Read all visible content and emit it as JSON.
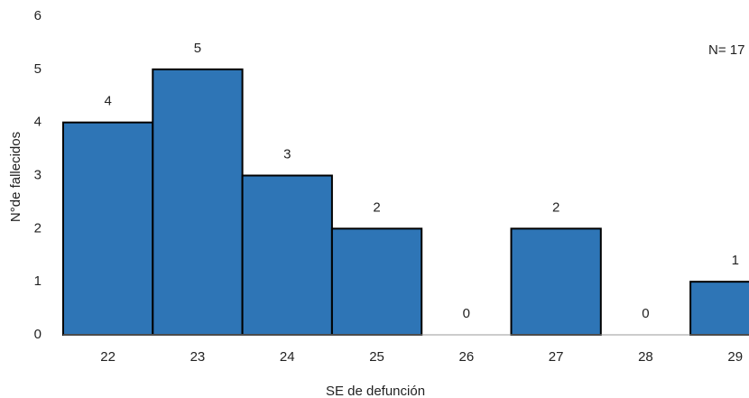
{
  "chart_data": {
    "type": "bar",
    "categories": [
      "22",
      "23",
      "24",
      "25",
      "26",
      "27",
      "28",
      "29"
    ],
    "values": [
      4,
      5,
      3,
      2,
      0,
      2,
      0,
      1
    ],
    "color": "#2e75b6",
    "ylim": [
      0,
      6
    ],
    "yticks": [
      0,
      1,
      2,
      3,
      4,
      5,
      6
    ],
    "grid": false,
    "y_label": "N°de fallecidos",
    "x_label": "SE de defunción",
    "annotation": "N= 17"
  }
}
